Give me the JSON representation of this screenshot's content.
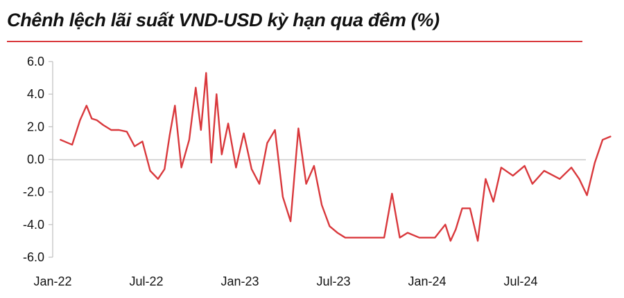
{
  "header": {
    "title": "Chênh lệch lãi suất VND-USD kỳ hạn qua đêm (%)"
  },
  "colors": {
    "series": "#d9383c",
    "accent_rule": "#d9383c",
    "axis": "#bfbfbf",
    "text": "#111111"
  },
  "chart_data": {
    "type": "line",
    "title": "Chênh lệch lãi suất VND-USD kỳ hạn qua đêm (%)",
    "xlabel": "",
    "ylabel": "",
    "ylim": [
      -6,
      6
    ],
    "yticks": [
      "6.0",
      "4.0",
      "2.0",
      "0.0",
      "-2.0",
      "-4.0",
      "-6.0"
    ],
    "xticks": [
      "Jan-22",
      "Jul-22",
      "Jan-23",
      "Jul-23",
      "Jan-24",
      "Jul-24"
    ],
    "x_range_months": [
      "Jan-22",
      "Dec-24"
    ],
    "grid": false,
    "legend": "none",
    "series": [
      {
        "x": [
          "Jan-22",
          "Feb-22",
          "Feb-22",
          "Mar-22",
          "Mar-22",
          "Mar-22",
          "Apr-22",
          "Apr-22",
          "May-22",
          "May-22",
          "Jun-22",
          "Jun-22",
          "Jul-22",
          "Jul-22",
          "Aug-22",
          "Aug-22",
          "Aug-22",
          "Sep-22",
          "Sep-22",
          "Oct-22",
          "Oct-22",
          "Oct-22",
          "Nov-22",
          "Nov-22",
          "Nov-22",
          "Dec-22",
          "Dec-22",
          "Jan-23",
          "Jan-23",
          "Feb-23",
          "Feb-23",
          "Mar-23",
          "Mar-23",
          "Apr-23",
          "Apr-23",
          "May-23",
          "May-23",
          "Jun-23",
          "Jun-23",
          "Jul-23",
          "Jul-23",
          "Aug-23",
          "Sep-23",
          "Oct-23",
          "Oct-23",
          "Nov-23",
          "Nov-23",
          "Dec-23",
          "Jan-24",
          "Feb-24",
          "Feb-24",
          "Feb-24",
          "Mar-24",
          "Mar-24",
          "Apr-24",
          "Apr-24",
          "May-24",
          "May-24",
          "Jun-24",
          "Jul-24",
          "Jul-24",
          "Aug-24",
          "Sep-24",
          "Oct-24",
          "Oct-24",
          "Nov-24",
          "Nov-24",
          "Dec-24",
          "Dec-24"
        ],
        "values": [
          1.2,
          0.9,
          2.4,
          3.3,
          2.5,
          2.4,
          2.1,
          1.8,
          1.8,
          1.7,
          0.8,
          1.1,
          -0.7,
          -1.2,
          -0.6,
          1.5,
          3.3,
          -0.5,
          1.2,
          4.4,
          1.8,
          5.3,
          -0.2,
          4.0,
          0.3,
          2.2,
          -0.5,
          1.6,
          -0.6,
          -1.5,
          1.0,
          1.8,
          -2.3,
          -3.8,
          1.9,
          -1.5,
          -0.4,
          -2.8,
          -4.1,
          -4.5,
          -4.8,
          -4.8,
          -4.8,
          -4.8,
          -2.1,
          -4.8,
          -4.5,
          -4.8,
          -4.8,
          -4.0,
          -5.0,
          -4.3,
          -3.0,
          -3.0,
          -5.0,
          -1.2,
          -2.6,
          -0.5,
          -1.0,
          -0.4,
          -1.5,
          -0.7,
          -1.2,
          -0.5,
          -1.2,
          -2.2,
          -0.2,
          1.2,
          1.4
        ]
      }
    ]
  }
}
